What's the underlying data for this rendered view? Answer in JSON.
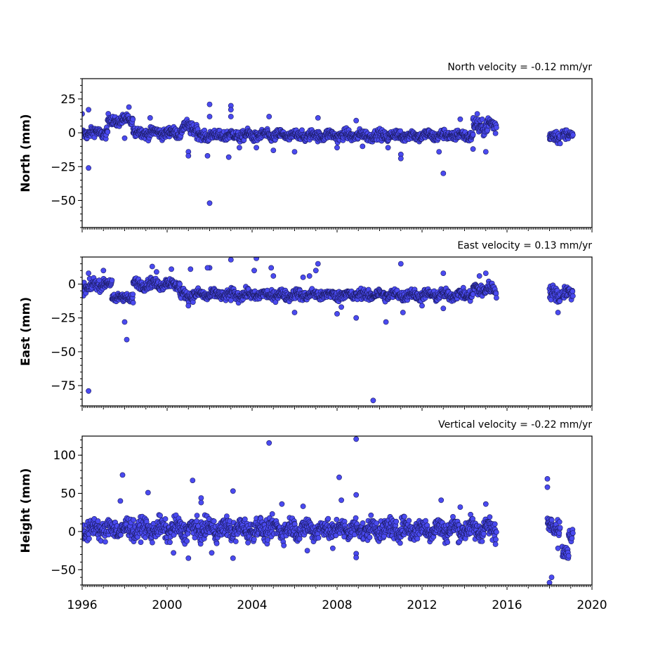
{
  "chart_data": [
    {
      "type": "scatter",
      "title": "North velocity = -0.12 mm/yr",
      "ylabel": "North (mm)",
      "xlabel": "",
      "xlim": [
        1996,
        2020
      ],
      "ylim": [
        -70,
        40
      ],
      "yticks": [
        25,
        0,
        -25,
        -50
      ],
      "ytick_labels": [
        "25",
        "0",
        "−25",
        "−50"
      ],
      "color": "#4a4af0",
      "outliers": [
        {
          "x": 1996.0,
          "y": 14
        },
        {
          "x": 1996.3,
          "y": 17
        },
        {
          "x": 1996.3,
          "y": -26
        },
        {
          "x": 1998.2,
          "y": 19
        },
        {
          "x": 1998.0,
          "y": -4
        },
        {
          "x": 1999.2,
          "y": 11
        },
        {
          "x": 2001.0,
          "y": -14
        },
        {
          "x": 2001.0,
          "y": -17
        },
        {
          "x": 2002.0,
          "y": 21
        },
        {
          "x": 2002.0,
          "y": 12
        },
        {
          "x": 2002.0,
          "y": -52
        },
        {
          "x": 2001.9,
          "y": -17
        },
        {
          "x": 2003.0,
          "y": 20
        },
        {
          "x": 2003.0,
          "y": 17
        },
        {
          "x": 2003.0,
          "y": 12
        },
        {
          "x": 2002.9,
          "y": -18
        },
        {
          "x": 2003.4,
          "y": -11
        },
        {
          "x": 2004.2,
          "y": -11
        },
        {
          "x": 2004.8,
          "y": 12
        },
        {
          "x": 2005.0,
          "y": -13
        },
        {
          "x": 2006.0,
          "y": -14
        },
        {
          "x": 2007.1,
          "y": 11
        },
        {
          "x": 2008.0,
          "y": -11
        },
        {
          "x": 2008.9,
          "y": 9
        },
        {
          "x": 2009.2,
          "y": -10
        },
        {
          "x": 2010.4,
          "y": -11
        },
        {
          "x": 2011.0,
          "y": -16
        },
        {
          "x": 2011.0,
          "y": -19
        },
        {
          "x": 2012.8,
          "y": -14
        },
        {
          "x": 2013.0,
          "y": -30
        },
        {
          "x": 2013.8,
          "y": 10
        },
        {
          "x": 2014.6,
          "y": 14
        },
        {
          "x": 2015.0,
          "y": -14
        },
        {
          "x": 2014.4,
          "y": -12
        }
      ],
      "trend_segments": [
        {
          "x_start": 1996.0,
          "x_end": 1997.2,
          "y": 0,
          "spread": 4
        },
        {
          "x_start": 1997.2,
          "x_end": 1998.4,
          "y": 9,
          "spread": 4
        },
        {
          "x_start": 1998.4,
          "x_end": 2000.7,
          "y": 0,
          "spread": 4
        },
        {
          "x_start": 2000.7,
          "x_end": 2001.4,
          "y": 4,
          "spread": 5
        },
        {
          "x_start": 2001.4,
          "x_end": 2014.4,
          "y": -2,
          "spread": 4
        },
        {
          "x_start": 2014.4,
          "x_end": 2015.5,
          "y": 5,
          "spread": 6
        },
        {
          "x_start": 2018.0,
          "x_end": 2018.5,
          "y": -3,
          "spread": 5
        },
        {
          "x_start": 2018.6,
          "x_end": 2019.1,
          "y": -2,
          "spread": 4
        }
      ]
    },
    {
      "type": "scatter",
      "title": "East velocity = 0.13 mm/yr",
      "ylabel": "East (mm)",
      "xlabel": "",
      "xlim": [
        1996,
        2020
      ],
      "ylim": [
        -90,
        20
      ],
      "yticks": [
        0,
        -25,
        -50,
        -75
      ],
      "ytick_labels": [
        "0",
        "−25",
        "−50",
        "−75"
      ],
      "color": "#4a4af0",
      "outliers": [
        {
          "x": 1996.3,
          "y": -79
        },
        {
          "x": 1996.3,
          "y": 8
        },
        {
          "x": 1997.0,
          "y": 10
        },
        {
          "x": 1998.0,
          "y": -28
        },
        {
          "x": 1998.1,
          "y": -41
        },
        {
          "x": 1999.3,
          "y": 13
        },
        {
          "x": 1999.5,
          "y": 9
        },
        {
          "x": 2000.2,
          "y": 11
        },
        {
          "x": 2001.1,
          "y": 11
        },
        {
          "x": 2001.0,
          "y": -16
        },
        {
          "x": 2002.0,
          "y": 12
        },
        {
          "x": 2001.9,
          "y": 12
        },
        {
          "x": 2003.0,
          "y": 18
        },
        {
          "x": 2003.0,
          "y": -12
        },
        {
          "x": 2004.2,
          "y": 19
        },
        {
          "x": 2004.1,
          "y": 10
        },
        {
          "x": 2004.9,
          "y": 12
        },
        {
          "x": 2005.0,
          "y": 6
        },
        {
          "x": 2006.0,
          "y": -21
        },
        {
          "x": 2006.4,
          "y": 5
        },
        {
          "x": 2006.7,
          "y": 6
        },
        {
          "x": 2007.1,
          "y": 15
        },
        {
          "x": 2007.0,
          "y": 10
        },
        {
          "x": 2008.0,
          "y": -22
        },
        {
          "x": 2008.9,
          "y": -25
        },
        {
          "x": 2008.2,
          "y": -17
        },
        {
          "x": 2009.7,
          "y": -86
        },
        {
          "x": 2010.3,
          "y": -28
        },
        {
          "x": 2011.0,
          "y": 15
        },
        {
          "x": 2011.1,
          "y": -21
        },
        {
          "x": 2012.0,
          "y": -16
        },
        {
          "x": 2013.0,
          "y": 8
        },
        {
          "x": 2013.0,
          "y": -18
        },
        {
          "x": 2014.7,
          "y": 6
        },
        {
          "x": 2015.0,
          "y": 8
        },
        {
          "x": 2018.4,
          "y": -21
        }
      ],
      "trend_segments": [
        {
          "x_start": 1996.0,
          "x_end": 1996.5,
          "y": -2,
          "spread": 5
        },
        {
          "x_start": 1996.5,
          "x_end": 1997.4,
          "y": 0,
          "spread": 4
        },
        {
          "x_start": 1997.4,
          "x_end": 1998.4,
          "y": -10,
          "spread": 4
        },
        {
          "x_start": 1998.4,
          "x_end": 2000.6,
          "y": 0,
          "spread": 4
        },
        {
          "x_start": 2000.6,
          "x_end": 2014.4,
          "y": -8,
          "spread": 4
        },
        {
          "x_start": 2014.4,
          "x_end": 2015.5,
          "y": -4,
          "spread": 5
        },
        {
          "x_start": 2018.0,
          "x_end": 2018.5,
          "y": -8,
          "spread": 6
        },
        {
          "x_start": 2018.6,
          "x_end": 2019.1,
          "y": -7,
          "spread": 5
        }
      ]
    },
    {
      "type": "scatter",
      "title": "Vertical velocity = -0.22 mm/yr",
      "ylabel": "Height (mm)",
      "xlabel": "",
      "xlim": [
        1996,
        2020
      ],
      "ylim": [
        -70,
        125
      ],
      "yticks": [
        100,
        50,
        0,
        -50
      ],
      "ytick_labels": [
        "100",
        "50",
        "0",
        "−50"
      ],
      "xticks": [
        1996,
        2000,
        2004,
        2008,
        2012,
        2016,
        2020
      ],
      "xtick_labels": [
        "1996",
        "2000",
        "2004",
        "2008",
        "2012",
        "2016",
        "2020"
      ],
      "color": "#4a4af0",
      "outliers": [
        {
          "x": 1997.9,
          "y": 74
        },
        {
          "x": 1997.8,
          "y": 40
        },
        {
          "x": 1999.1,
          "y": 51
        },
        {
          "x": 2000.3,
          "y": -28
        },
        {
          "x": 2001.2,
          "y": 67
        },
        {
          "x": 2001.0,
          "y": -35
        },
        {
          "x": 2001.6,
          "y": 44
        },
        {
          "x": 2001.6,
          "y": 38
        },
        {
          "x": 2002.1,
          "y": -28
        },
        {
          "x": 2003.1,
          "y": 53
        },
        {
          "x": 2003.1,
          "y": -35
        },
        {
          "x": 2004.8,
          "y": 116
        },
        {
          "x": 2005.4,
          "y": 36
        },
        {
          "x": 2006.4,
          "y": 33
        },
        {
          "x": 2006.6,
          "y": -25
        },
        {
          "x": 2007.8,
          "y": -22
        },
        {
          "x": 2008.1,
          "y": 71
        },
        {
          "x": 2008.2,
          "y": 41
        },
        {
          "x": 2008.9,
          "y": 121
        },
        {
          "x": 2008.9,
          "y": 48
        },
        {
          "x": 2008.9,
          "y": -29
        },
        {
          "x": 2008.9,
          "y": -34
        },
        {
          "x": 2012.9,
          "y": 41
        },
        {
          "x": 2013.8,
          "y": 32
        },
        {
          "x": 2015.0,
          "y": 36
        },
        {
          "x": 2017.9,
          "y": 69
        },
        {
          "x": 2017.9,
          "y": 58
        },
        {
          "x": 2018.0,
          "y": -67
        },
        {
          "x": 2018.1,
          "y": -60
        },
        {
          "x": 2018.4,
          "y": -22
        }
      ],
      "trend_segments": [
        {
          "x_start": 1996.0,
          "x_end": 2015.5,
          "y": 3,
          "spread": 14
        },
        {
          "x_start": 2017.9,
          "x_end": 2018.5,
          "y": 8,
          "spread": 10
        },
        {
          "x_start": 2018.6,
          "x_end": 2018.9,
          "y": -30,
          "spread": 10
        },
        {
          "x_start": 2018.9,
          "x_end": 2019.1,
          "y": -2,
          "spread": 10
        }
      ]
    }
  ]
}
